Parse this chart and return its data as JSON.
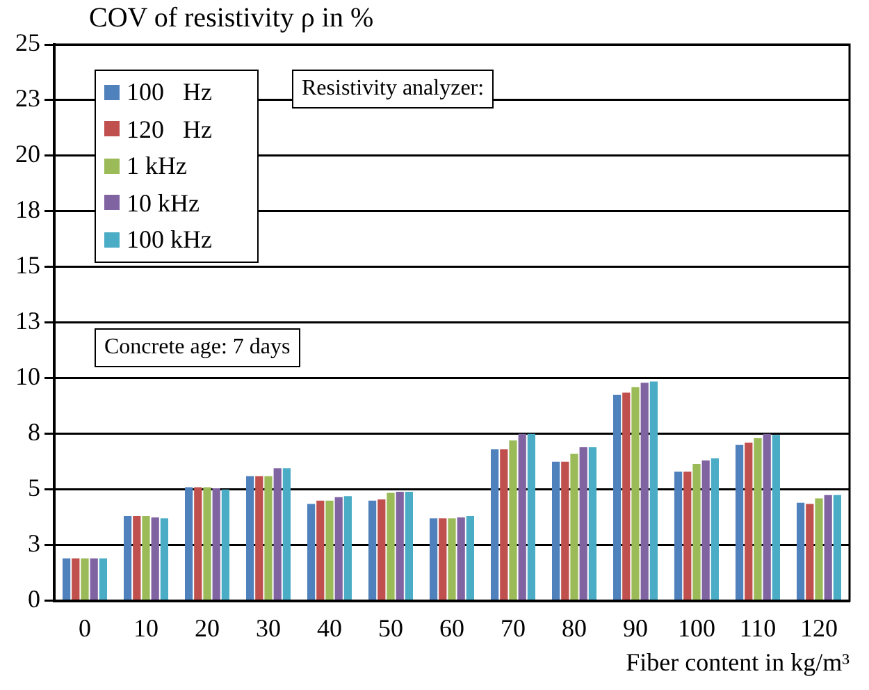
{
  "chart_data": {
    "type": "bar",
    "ylabel": "COV of resistivity ρ in %",
    "xlabel": "Fiber content in kg/m³",
    "categories": [
      "0",
      "10",
      "20",
      "30",
      "40",
      "50",
      "60",
      "70",
      "80",
      "90",
      "100",
      "110",
      "120"
    ],
    "series": [
      {
        "name": "100   Hz",
        "color": "#4f81bd",
        "values": [
          1.9,
          3.8,
          5.1,
          5.6,
          4.35,
          4.5,
          3.7,
          6.8,
          6.25,
          9.25,
          5.8,
          7.0,
          4.4
        ]
      },
      {
        "name": "120   Hz",
        "color": "#c0504d",
        "values": [
          1.9,
          3.8,
          5.1,
          5.6,
          4.5,
          4.55,
          3.7,
          6.8,
          6.25,
          9.35,
          5.8,
          7.1,
          4.35
        ]
      },
      {
        "name": "1 kHz",
        "color": "#9bbb59",
        "values": [
          1.9,
          3.8,
          5.1,
          5.6,
          4.5,
          4.85,
          3.7,
          7.2,
          6.6,
          9.6,
          6.15,
          7.3,
          4.6
        ]
      },
      {
        "name": "10 kHz",
        "color": "#8064a2",
        "values": [
          1.9,
          3.75,
          5.05,
          5.95,
          4.65,
          4.9,
          3.75,
          7.5,
          6.9,
          9.8,
          6.3,
          7.5,
          4.75
        ]
      },
      {
        "name": "100 kHz",
        "color": "#4bacc6",
        "values": [
          1.9,
          3.7,
          5.0,
          5.95,
          4.7,
          4.9,
          3.8,
          7.5,
          6.9,
          9.85,
          6.4,
          7.45,
          4.75
        ]
      }
    ],
    "ylim": [
      0,
      25
    ],
    "yticks": [
      0,
      {
        "value": 2.5,
        "label": "3"
      },
      5,
      {
        "value": 7.5,
        "label": "8"
      },
      10,
      {
        "value": 12.5,
        "label": "13"
      },
      15,
      {
        "value": 17.5,
        "label": "18"
      },
      20,
      {
        "value": 22.5,
        "label": "23"
      },
      25
    ],
    "grid": "y",
    "legend": "top left",
    "annotations": [
      "Resistivity analyzer:",
      "Concrete age: 7 days"
    ]
  }
}
